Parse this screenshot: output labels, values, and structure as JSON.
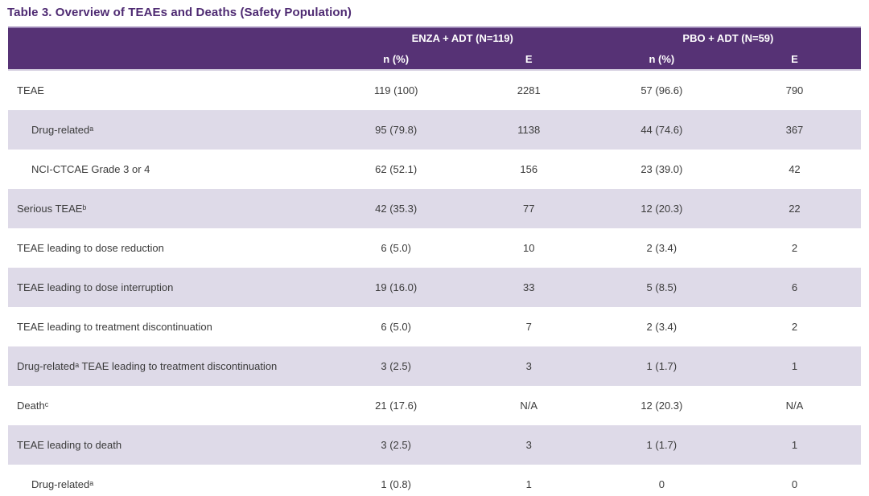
{
  "title": "Table 3. Overview of TEAEs and Deaths (Safety Population)",
  "table": {
    "col_groups": [
      {
        "label": "ENZA + ADT (N=119)"
      },
      {
        "label": "PBO + ADT (N=59)"
      }
    ],
    "sub_headers": [
      "n (%)",
      "E",
      "n (%)",
      "E"
    ],
    "rows": [
      {
        "label": "TEAE",
        "indent": 0,
        "values": [
          "119 (100)",
          "2281",
          "57 (96.6)",
          "790"
        ]
      },
      {
        "label": "Drug-relatedᵃ",
        "indent": 1,
        "values": [
          "95 (79.8)",
          "1138",
          "44 (74.6)",
          "367"
        ]
      },
      {
        "label": "NCI-CTCAE Grade 3 or 4",
        "indent": 1,
        "values": [
          "62 (52.1)",
          "156",
          "23 (39.0)",
          "42"
        ]
      },
      {
        "label": "Serious TEAEᵇ",
        "indent": 0,
        "values": [
          "42 (35.3)",
          "77",
          "12 (20.3)",
          "22"
        ]
      },
      {
        "label": "TEAE leading to dose reduction",
        "indent": 0,
        "values": [
          "6 (5.0)",
          "10",
          "2 (3.4)",
          "2"
        ]
      },
      {
        "label": "TEAE leading to dose interruption",
        "indent": 0,
        "values": [
          "19 (16.0)",
          "33",
          "5 (8.5)",
          "6"
        ]
      },
      {
        "label": "TEAE leading to treatment discontinuation",
        "indent": 0,
        "values": [
          "6 (5.0)",
          "7",
          "2 (3.4)",
          "2"
        ]
      },
      {
        "label": "Drug-relatedᵃ TEAE leading to treatment discontinuation",
        "indent": 0,
        "values": [
          "3 (2.5)",
          "3",
          "1 (1.7)",
          "1"
        ]
      },
      {
        "label": "Deathᶜ",
        "indent": 0,
        "values": [
          "21 (17.6)",
          "N/A",
          "12 (20.3)",
          "N/A"
        ]
      },
      {
        "label": "TEAE leading to death",
        "indent": 0,
        "values": [
          "3 (2.5)",
          "3",
          "1 (1.7)",
          "1"
        ]
      },
      {
        "label": "Drug-relatedᵃ",
        "indent": 1,
        "values": [
          "1 (0.8)",
          "1",
          "0",
          "0"
        ]
      }
    ]
  },
  "colors": {
    "header_purple": "#563275",
    "title_purple": "#4e2a72",
    "stripe_lavender": "#dedae8",
    "body_text": "#3b3b3b"
  }
}
